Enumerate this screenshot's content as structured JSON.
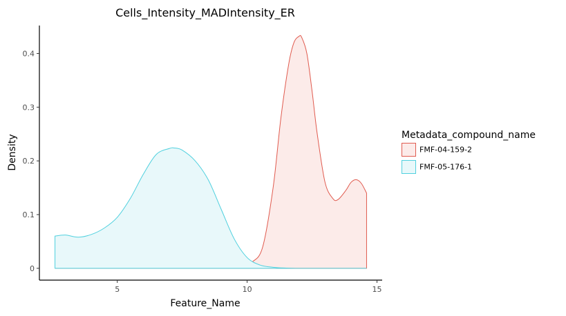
{
  "chart_data": {
    "type": "area",
    "title": "Cells_Intensity_MADIntensity_ER",
    "xlabel": "Feature_Name",
    "ylabel": "Density",
    "xlim": [
      2.0,
      15.2
    ],
    "ylim": [
      -0.022,
      0.452
    ],
    "x_ticks": [
      5,
      10,
      15
    ],
    "y_ticks": [
      0,
      0.1,
      0.2,
      0.3,
      0.4
    ],
    "y_tick_labels": [
      "0",
      "0.1",
      "0.2",
      "0.3",
      "0.4"
    ],
    "grid": false,
    "legend": {
      "title": "Metadata_compound_name",
      "position": "right"
    },
    "series": [
      {
        "name": "FMF-04-159-2",
        "color": "#E05A4E",
        "fill": "#FCEBE9",
        "x": [
          2.6,
          9.0,
          9.4,
          9.8,
          10.2,
          10.6,
          11.0,
          11.3,
          11.6,
          11.8,
          12.0,
          12.1,
          12.3,
          12.5,
          12.7,
          13.0,
          13.3,
          13.5,
          13.8,
          14.0,
          14.2,
          14.4,
          14.6
        ],
        "y": [
          0.0,
          0.0,
          0.001,
          0.004,
          0.012,
          0.04,
          0.15,
          0.28,
          0.38,
          0.42,
          0.432,
          0.43,
          0.4,
          0.33,
          0.25,
          0.16,
          0.13,
          0.128,
          0.145,
          0.16,
          0.165,
          0.158,
          0.14
        ]
      },
      {
        "name": "FMF-05-176-1",
        "color": "#4FD0DE",
        "fill": "#E8F8FA",
        "x": [
          2.6,
          3.0,
          3.5,
          4.0,
          4.5,
          5.0,
          5.5,
          6.0,
          6.5,
          7.0,
          7.2,
          7.5,
          8.0,
          8.5,
          9.0,
          9.5,
          10.0,
          10.5,
          11.0,
          11.5,
          12.0,
          13.0,
          14.6
        ],
        "y": [
          0.06,
          0.062,
          0.058,
          0.063,
          0.075,
          0.095,
          0.13,
          0.175,
          0.212,
          0.223,
          0.224,
          0.22,
          0.2,
          0.165,
          0.11,
          0.055,
          0.02,
          0.006,
          0.002,
          0.0005,
          0.0,
          0.0,
          0.0
        ]
      }
    ]
  }
}
